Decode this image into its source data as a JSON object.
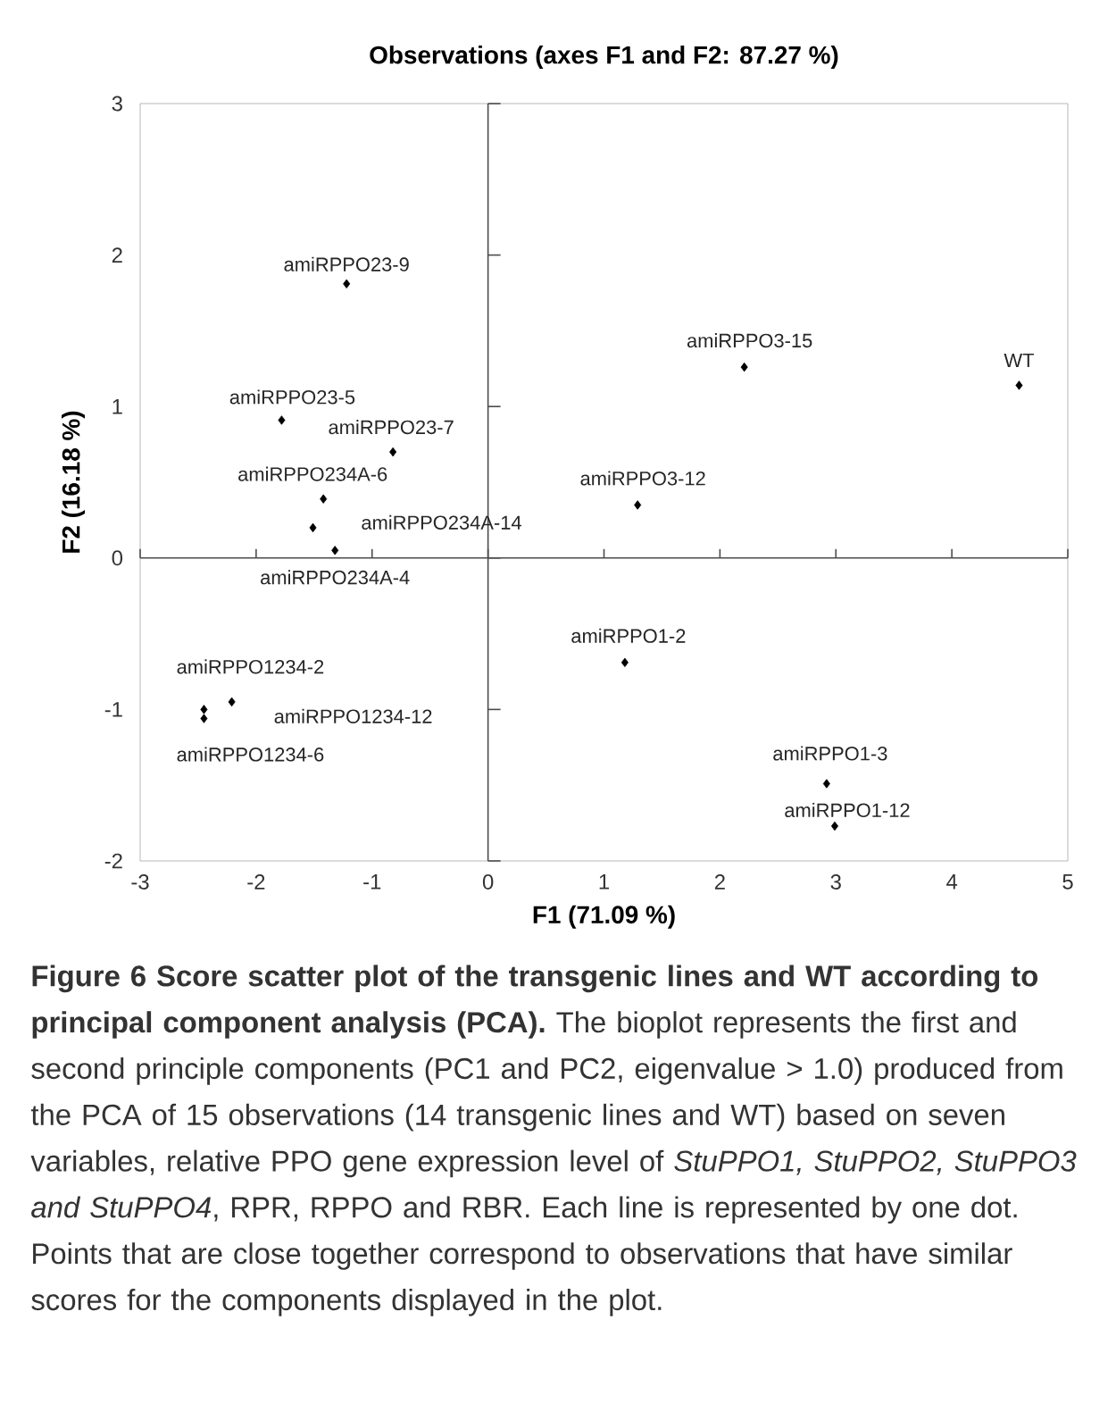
{
  "chart_data": {
    "type": "scatter",
    "title": "Observations (axes F1 and F2: 87.27 %)",
    "xlabel": "F1 (71.09 %)",
    "ylabel": "F2 (16.18 %)",
    "x": [
      -1.22,
      2.21,
      4.58,
      -1.78,
      -0.82,
      -1.42,
      1.29,
      -1.51,
      -1.32,
      1.18,
      -2.45,
      -2.21,
      -2.45,
      2.92,
      2.99
    ],
    "values": [
      1.81,
      1.26,
      1.14,
      0.91,
      0.7,
      0.39,
      0.35,
      0.2,
      0.05,
      -0.69,
      -1.0,
      -0.95,
      -1.06,
      -1.49,
      -1.77
    ],
    "color": "#000000",
    "marker": "diamond",
    "xlim": [
      -3,
      5
    ],
    "ylim": [
      -2,
      3
    ],
    "xticks": [
      -3,
      -2,
      -1,
      0,
      1,
      2,
      3,
      4,
      5
    ],
    "yticks": [
      -2,
      -1,
      0,
      1,
      2,
      3
    ],
    "annotations": [
      {
        "text": "amiRPPO23-9",
        "x": -1.22,
        "y": 1.81
      },
      {
        "text": "amiRPPO3-15",
        "x": 2.21,
        "y": 1.26
      },
      {
        "text": "WT",
        "x": 4.58,
        "y": 1.14
      },
      {
        "text": "amiRPPO23-5",
        "x": -1.78,
        "y": 0.91
      },
      {
        "text": "amiRPPO23-7",
        "x": -0.82,
        "y": 0.7
      },
      {
        "text": "amiRPPO234A-6",
        "x": -1.42,
        "y": 0.39
      },
      {
        "text": "amiRPPO3-12",
        "x": 1.29,
        "y": 0.35
      },
      {
        "text": "amiRPPO234A-14",
        "x": -1.51,
        "y": 0.2
      },
      {
        "text": "amiRPPO234A-4",
        "x": -1.32,
        "y": 0.05
      },
      {
        "text": "amiRPPO1-2",
        "x": 1.18,
        "y": -0.69
      },
      {
        "text": "amiRPPO1234-2",
        "x": -2.45,
        "y": -1.0
      },
      {
        "text": "amiRPPO1234-12",
        "x": -2.21,
        "y": -0.95
      },
      {
        "text": "amiRPPO1234-6",
        "x": -2.45,
        "y": -1.06
      },
      {
        "text": "amiRPPO1-3",
        "x": 2.92,
        "y": -1.49
      },
      {
        "text": "amiRPPO1-12",
        "x": 2.99,
        "y": -1.77
      },
      "**Figure 6 Score scatter plot of the transgenic lines and WT according to principal component analysis (PCA).** The bioplot represents the first and second principle components (PC1 and PC2, eigenvalue > 1.0) produced from the PCA of 15 observations (14 transgenic lines and WT) based on seven variables, relative PPO gene expression level of *StuPPO1, StuPPO2, StuPPO3 and StuPPO4*, RPR, RPPO and RBR. Each line is represented by one dot. Points that are close together correspond to observations that have similar scores for the components displayed in the plot."
    ]
  }
}
